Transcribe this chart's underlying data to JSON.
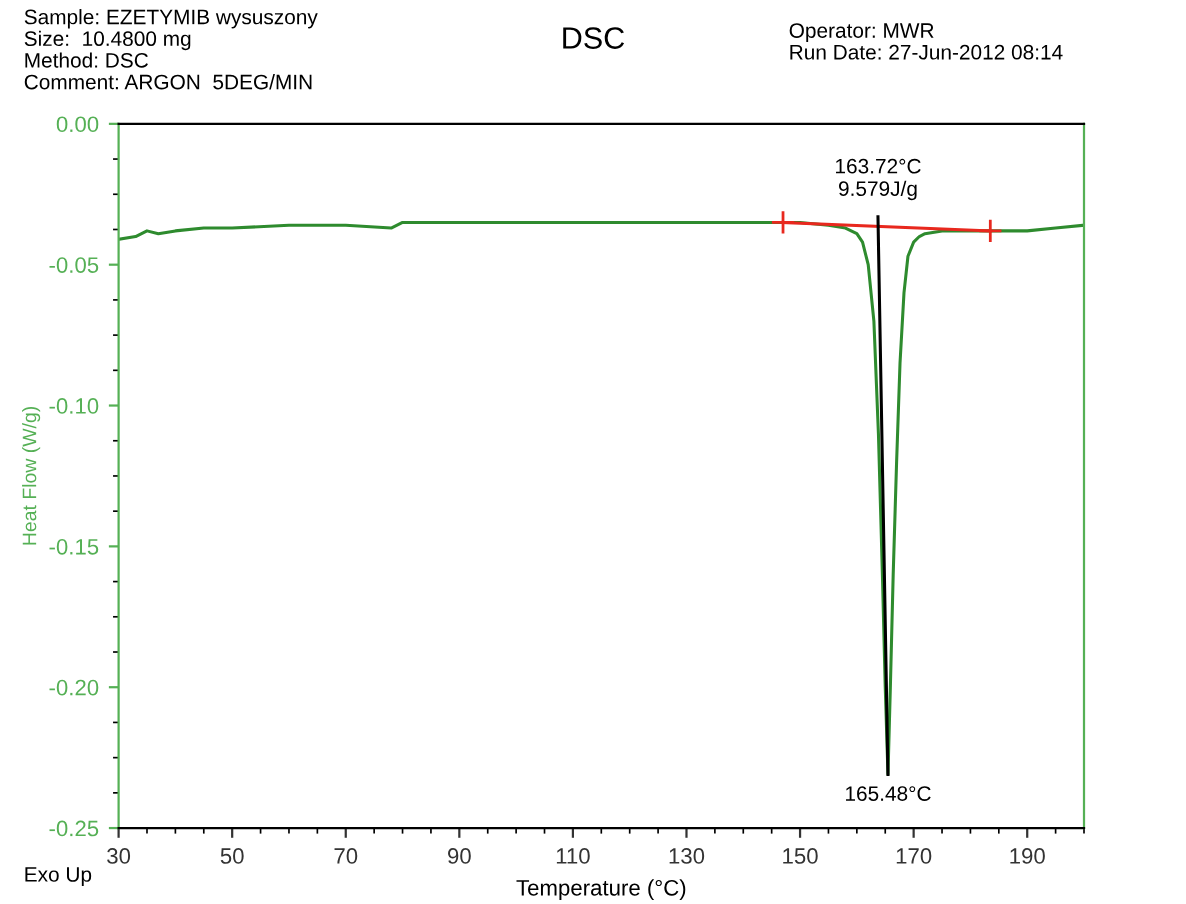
{
  "chart_data": {
    "type": "line",
    "title": "DSC",
    "xlabel": "Temperature (°C)",
    "ylabel": "Heat Flow (W/g)",
    "xlim": [
      30,
      200
    ],
    "xticks": [
      30,
      50,
      70,
      90,
      110,
      130,
      150,
      170,
      190
    ],
    "ylim": [
      -0.25,
      0.0
    ],
    "yticks": [
      {
        "value": -0.25,
        "label": "-0.25"
      },
      {
        "value": -0.2,
        "label": "-0.20"
      },
      {
        "value": -0.15,
        "label": "-0.15"
      },
      {
        "value": -0.1,
        "label": "-0.10"
      },
      {
        "value": -0.05,
        "label": "-0.05"
      },
      {
        "value": 0.0,
        "label": "0.00"
      }
    ],
    "grid": false,
    "legend": false,
    "series": [
      {
        "color": "#2e8b2e",
        "x": [
          30,
          33,
          35,
          37,
          40,
          45,
          50,
          60,
          70,
          78,
          80,
          90,
          100,
          110,
          120,
          130,
          140,
          150,
          155,
          158,
          160,
          161,
          162,
          163,
          163.8,
          164.5,
          165,
          165.48,
          165.9,
          166.4,
          167,
          167.6,
          168.3,
          169,
          170,
          171,
          172,
          175,
          180,
          185,
          190,
          195,
          200
        ],
        "values": [
          -0.041,
          -0.04,
          -0.038,
          -0.039,
          -0.038,
          -0.037,
          -0.037,
          -0.036,
          -0.036,
          -0.037,
          -0.035,
          -0.035,
          -0.035,
          -0.035,
          -0.035,
          -0.035,
          -0.035,
          -0.035,
          -0.036,
          -0.037,
          -0.039,
          -0.042,
          -0.05,
          -0.07,
          -0.11,
          -0.16,
          -0.2,
          -0.231,
          -0.2,
          -0.16,
          -0.12,
          -0.085,
          -0.06,
          -0.047,
          -0.042,
          -0.04,
          -0.039,
          -0.038,
          -0.038,
          -0.038,
          -0.038,
          -0.037,
          -0.036
        ]
      },
      {
        "color": "#e8281e",
        "marker": "cross",
        "x": [
          147,
          183.5
        ],
        "values": [
          -0.035,
          -0.038
        ]
      },
      {
        "color": "#000000",
        "x": [
          163.72,
          165.48
        ],
        "values": [
          -0.033,
          -0.231
        ]
      }
    ],
    "annotations": [
      "Sample: EZETYMIB wysuszony\nSize:  10.4800 mg\nMethod: DSC\nComment: ARGON  5DEG/MIN",
      "Operator: MWR\nRun Date: 27-Jun-2012 08:14",
      "Exo Up",
      {
        "text": "163.72°C\n9.579J/g",
        "x": 163.72,
        "y": -0.033
      },
      {
        "text": "165.48°C",
        "x": 165.48,
        "y": -0.231
      }
    ]
  }
}
